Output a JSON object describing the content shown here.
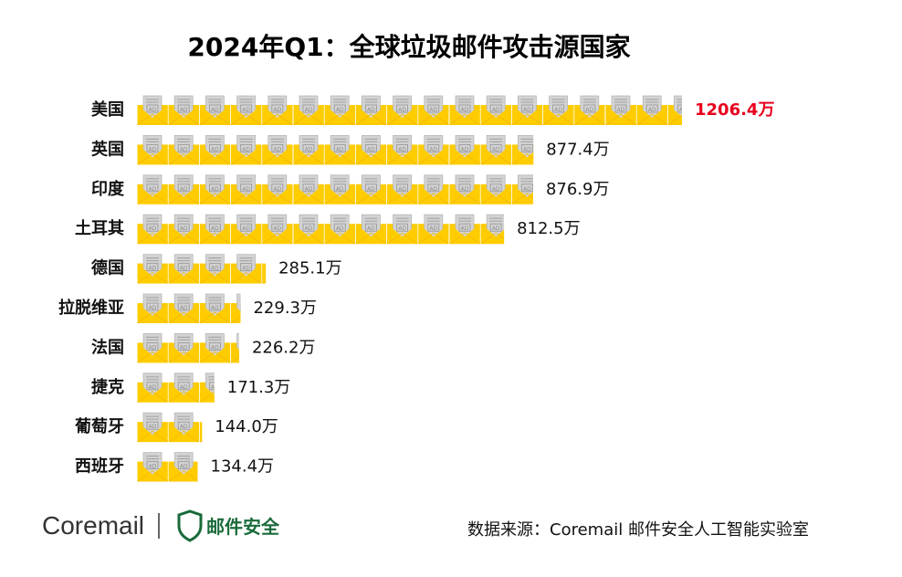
{
  "chart_data": {
    "type": "bar",
    "orientation": "horizontal",
    "title": "2024年Q1：全球垃圾邮件攻击源国家",
    "unit": "万",
    "categories": [
      "美国",
      "英国",
      "印度",
      "土耳其",
      "德国",
      "拉脱维亚",
      "法国",
      "捷克",
      "葡萄牙",
      "西班牙"
    ],
    "values": [
      1206.4,
      877.4,
      876.9,
      812.5,
      285.1,
      229.3,
      226.2,
      171.3,
      144.0,
      134.4
    ],
    "value_labels": [
      "1206.4万",
      "877.4万",
      "876.9万",
      "812.5万",
      "285.1万",
      "229.3万",
      "226.2万",
      "171.3万",
      "144.0万",
      "134.4万"
    ],
    "highlight_color": "#e8001c",
    "bar_color": "#ffcc00",
    "icon": "envelope-ad-icon"
  },
  "footer": {
    "brand": "Coremail",
    "brand_sub": "邮件安全",
    "source": "数据来源：Coremail 邮件安全人工智能实验室"
  },
  "colors": {
    "brand_green": "#1a6b3a",
    "text": "#111111",
    "ad_text": "AD"
  }
}
